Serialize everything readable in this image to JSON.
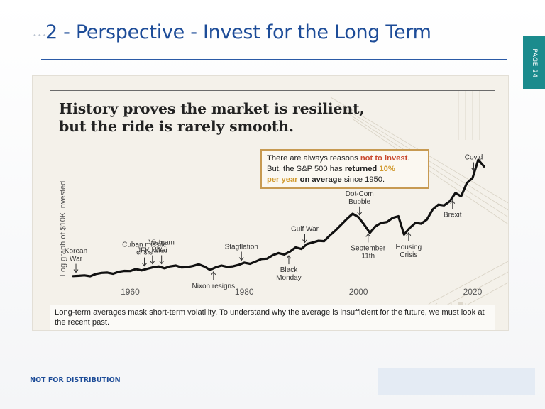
{
  "slide": {
    "decor_dots": "••••",
    "title": "2 - Perspective - Invest for the Long Term",
    "page_tab": "PAGE 24",
    "footer_label": "NOT FOR DISTRIBUTION"
  },
  "infographic": {
    "headline_line1": "History proves the market is resilient,",
    "headline_line2": "but the ride is rarely smooth.",
    "callout": {
      "t1": "There are always reasons ",
      "t2": "not to invest",
      "t3": ".",
      "t4": "But, the S&P 500 has ",
      "t5": "returned ",
      "t6": "10%",
      "t7": "per year",
      "t8": " on average",
      "t9": " since 1950."
    },
    "footnote": "Long-term averages mask short-term volatility. To understand why the average is insufficient for the future, we must look at the recent past."
  },
  "colors": {
    "title_blue": "#1d4c98",
    "tab_teal": "#1b8b8d",
    "line": "#111111",
    "callout_border": "#c79a52",
    "callout_red": "#c9492f",
    "callout_gold": "#d19a2f"
  },
  "chart_data": {
    "type": "line",
    "title": "",
    "xlabel": "",
    "ylabel": "Log graph of $10K invested",
    "y_scale": "log",
    "xlim": [
      1950,
      2022
    ],
    "x_ticks": [
      "1960",
      "1980",
      "2000",
      "2020"
    ],
    "series": [
      {
        "values": [
          [
            1950,
            0.0
          ],
          [
            1951,
            0.3
          ],
          [
            1952,
            0.8
          ],
          [
            1953,
            -0.2
          ],
          [
            1954,
            2.5
          ],
          [
            1955,
            3.8
          ],
          [
            1956,
            4.2
          ],
          [
            1957,
            2.8
          ],
          [
            1958,
            5.2
          ],
          [
            1959,
            6.2
          ],
          [
            1960,
            6.0
          ],
          [
            1961,
            8.4
          ],
          [
            1962,
            6.8
          ],
          [
            1963,
            8.8
          ],
          [
            1964,
            10.6
          ],
          [
            1965,
            11.6
          ],
          [
            1966,
            9.4
          ],
          [
            1967,
            11.6
          ],
          [
            1968,
            12.6
          ],
          [
            1969,
            10.4
          ],
          [
            1970,
            10.7
          ],
          [
            1971,
            12.1
          ],
          [
            1972,
            14.1
          ],
          [
            1973,
            11.4
          ],
          [
            1974,
            7.4
          ],
          [
            1975,
            10.6
          ],
          [
            1976,
            12.6
          ],
          [
            1977,
            11.1
          ],
          [
            1978,
            11.7
          ],
          [
            1979,
            13.4
          ],
          [
            1980,
            16.1
          ],
          [
            1981,
            14.8
          ],
          [
            1982,
            17.5
          ],
          [
            1983,
            20.5
          ],
          [
            1984,
            20.9
          ],
          [
            1985,
            25.1
          ],
          [
            1986,
            27.7
          ],
          [
            1987,
            26.0
          ],
          [
            1988,
            29.5
          ],
          [
            1989,
            34.5
          ],
          [
            1990,
            32.6
          ],
          [
            1991,
            38.5
          ],
          [
            1992,
            40.5
          ],
          [
            1993,
            42.5
          ],
          [
            1994,
            42.0
          ],
          [
            1995,
            49.0
          ],
          [
            1996,
            55.0
          ],
          [
            1997,
            62.0
          ],
          [
            1998,
            69.0
          ],
          [
            1999,
            75.0
          ],
          [
            2000,
            71.0
          ],
          [
            2001,
            62.0
          ],
          [
            2002,
            52.0
          ],
          [
            2003,
            60.0
          ],
          [
            2004,
            64.0
          ],
          [
            2005,
            65.0
          ],
          [
            2006,
            70.0
          ],
          [
            2007,
            72.0
          ],
          [
            2008,
            50.0
          ],
          [
            2009,
            58.0
          ],
          [
            2010,
            64.0
          ],
          [
            2011,
            63.0
          ],
          [
            2012,
            68.0
          ],
          [
            2013,
            80.0
          ],
          [
            2014,
            86.0
          ],
          [
            2015,
            85.0
          ],
          [
            2016,
            90.0
          ],
          [
            2017,
            100.0
          ],
          [
            2018,
            96.0
          ],
          [
            2019,
            112.0
          ],
          [
            2020,
            118.0
          ],
          [
            2021,
            140.0
          ],
          [
            2022,
            132.0
          ]
        ]
      }
    ],
    "annotations": [
      {
        "lines": [
          "Korean",
          "War"
        ],
        "year": 1950.5,
        "side": "above"
      },
      {
        "lines": [
          "Cuban missile",
          "crisis"
        ],
        "year": 1962.5,
        "side": "above"
      },
      {
        "lines": [
          "JFK killed"
        ],
        "year": 1963.9,
        "side": "above"
      },
      {
        "lines": [
          "Vietnam",
          "War"
        ],
        "year": 1965.5,
        "side": "above"
      },
      {
        "lines": [
          "Nixon resigns"
        ],
        "year": 1974.6,
        "side": "below"
      },
      {
        "lines": [
          "Stagflation"
        ],
        "year": 1979.5,
        "side": "above"
      },
      {
        "lines": [
          "Black",
          "Monday"
        ],
        "year": 1987.8,
        "side": "below"
      },
      {
        "lines": [
          "Gulf War"
        ],
        "year": 1990.6,
        "side": "above"
      },
      {
        "lines": [
          "Dot-Com",
          "Bubble"
        ],
        "year": 2000.2,
        "side": "above"
      },
      {
        "lines": [
          "September",
          "11th"
        ],
        "year": 2001.7,
        "side": "below"
      },
      {
        "lines": [
          "Housing",
          "Crisis"
        ],
        "year": 2008.8,
        "side": "below"
      },
      {
        "lines": [
          "Covid"
        ],
        "year": 2020.2,
        "side": "above"
      },
      {
        "lines": [
          "Brexit"
        ],
        "year": 2016.5,
        "side": "below"
      }
    ],
    "grid": false,
    "legend": "none"
  }
}
